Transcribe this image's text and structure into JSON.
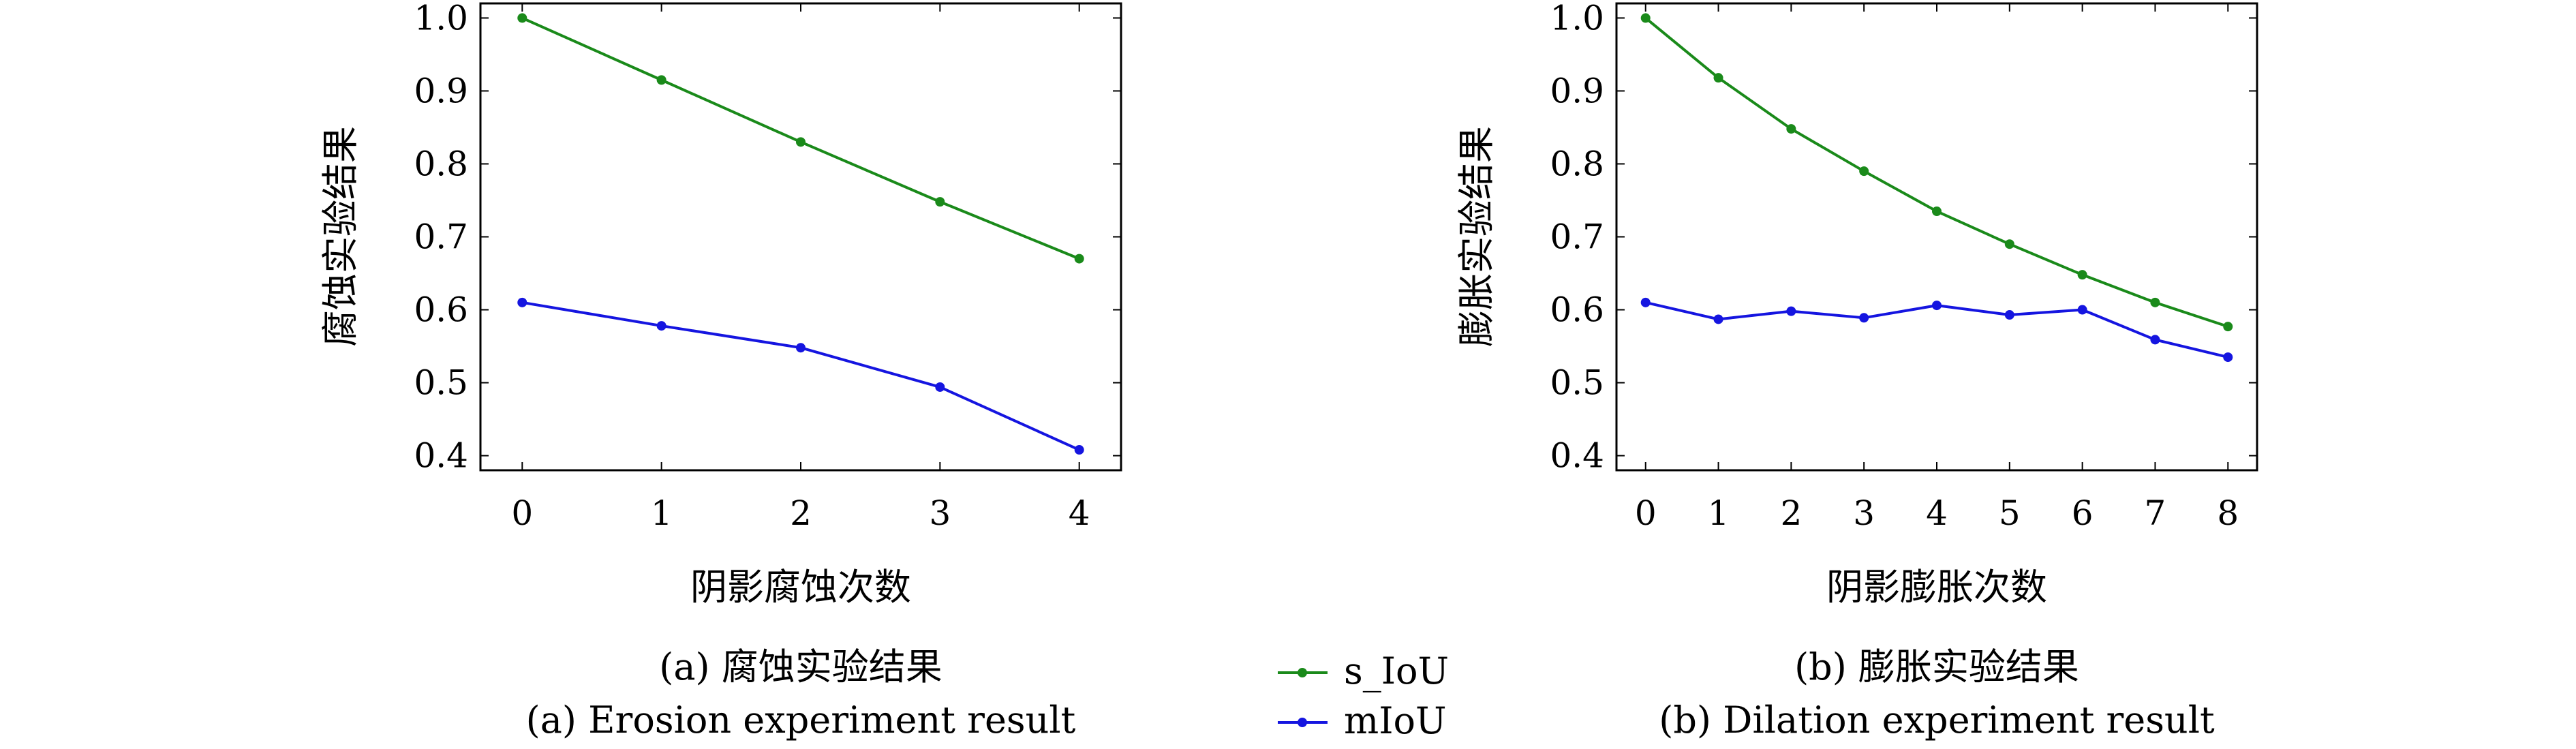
{
  "chart_data": [
    {
      "type": "line",
      "caption_cn": "(a) 腐蚀实验结果",
      "caption_en": "(a) Erosion experiment result",
      "xlabel": "阴影腐蚀次数",
      "ylabel": "腐蚀实验结果",
      "x": [
        0,
        1,
        2,
        3,
        4
      ],
      "xticks": [
        "0",
        "1",
        "2",
        "3",
        "4"
      ],
      "yticks": [
        "0.4",
        "0.5",
        "0.6",
        "0.7",
        "0.8",
        "0.9",
        "1.0"
      ],
      "xlim": [
        -0.3,
        4.3
      ],
      "ylim": [
        0.38,
        1.02
      ],
      "grid": false,
      "series": [
        {
          "name": "s_IoU",
          "color": "#1a8a1a",
          "values": [
            1.0,
            0.915,
            0.83,
            0.748,
            0.67
          ]
        },
        {
          "name": "mIoU",
          "color": "#1515e0",
          "values": [
            0.61,
            0.578,
            0.548,
            0.494,
            0.408
          ]
        }
      ]
    },
    {
      "type": "line",
      "caption_cn": "(b) 膨胀实验结果",
      "caption_en": "(b) Dilation experiment result",
      "xlabel": "阴影膨胀次数",
      "ylabel": "膨胀实验结果",
      "x": [
        0,
        1,
        2,
        3,
        4,
        5,
        6,
        7,
        8
      ],
      "xticks": [
        "0",
        "1",
        "2",
        "3",
        "4",
        "5",
        "6",
        "7",
        "8"
      ],
      "yticks": [
        "0.4",
        "0.5",
        "0.6",
        "0.7",
        "0.8",
        "0.9",
        "1.0"
      ],
      "xlim": [
        -0.4,
        8.4
      ],
      "ylim": [
        0.38,
        1.02
      ],
      "grid": false,
      "series": [
        {
          "name": "s_IoU",
          "color": "#1a8a1a",
          "values": [
            1.0,
            0.918,
            0.848,
            0.79,
            0.735,
            0.69,
            0.648,
            0.61,
            0.577
          ]
        },
        {
          "name": "mIoU",
          "color": "#1515e0",
          "values": [
            0.61,
            0.587,
            0.598,
            0.589,
            0.606,
            0.593,
            0.6,
            0.559,
            0.535
          ]
        }
      ]
    }
  ],
  "legend": {
    "placement": "bottom-center",
    "items": [
      {
        "label": "s_IoU",
        "color": "#1a8a1a"
      },
      {
        "label": "mIoU",
        "color": "#1515e0"
      }
    ]
  }
}
